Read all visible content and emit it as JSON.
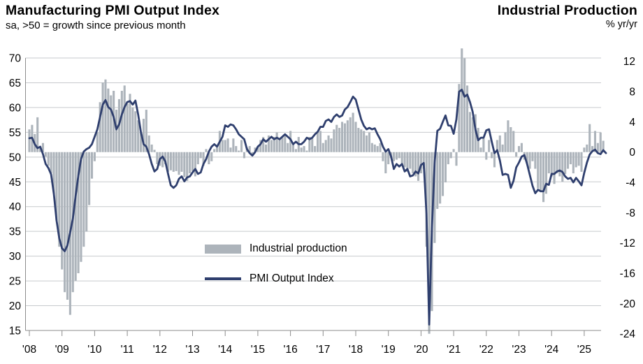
{
  "header": {
    "left_title": "Manufacturing PMI Output Index",
    "left_subtitle": "sa, >50 = growth since previous month",
    "right_title": "Industrial Production",
    "right_subtitle": "% yr/yr"
  },
  "legend": {
    "bars_label": "Industrial production",
    "line_label": "PMI Output Index"
  },
  "colors": {
    "bar": "#adb4bb",
    "line": "#2f3f6e",
    "grid": "#c7cacd",
    "axis": "#8c8c8c",
    "text": "#000000"
  },
  "chart_data": {
    "type": "bar+line",
    "frequency": "monthly",
    "start_year": 2008,
    "start_month": 1,
    "end_label": "2025-09",
    "grid": true,
    "legend_position": "overlay-center-left",
    "x_tick_labels": [
      "'08",
      "'09",
      "'10",
      "'11",
      "'12",
      "'13",
      "'14",
      "'15",
      "'16",
      "'17",
      "'18",
      "'19",
      "'20",
      "'21",
      "'22",
      "'23",
      "'24",
      "'25"
    ],
    "left_axis": {
      "min": 15,
      "max": 70,
      "tick_step": 5,
      "ticks": [
        70,
        65,
        60,
        55,
        50,
        45,
        40,
        35,
        30,
        25,
        20,
        15
      ],
      "series": "PMI Output Index"
    },
    "right_axis": {
      "min": -24,
      "max": 12,
      "tick_step": 4,
      "ticks": [
        12,
        8,
        4,
        0,
        -4,
        -8,
        -12,
        -16,
        -20,
        -24
      ],
      "unit": "% yr/yr",
      "zero_at_left_value": 51,
      "series": "Industrial production"
    },
    "series": [
      {
        "name": "Industrial production",
        "type": "bar",
        "axis": "right",
        "values": [
          3.0,
          3.6,
          2.4,
          4.6,
          0.8,
          1.2,
          -0.6,
          -1.8,
          -2.8,
          -5.5,
          -9.0,
          -12.5,
          -15.5,
          -18.5,
          -19.5,
          -21.5,
          -18.5,
          -17.0,
          -16.0,
          -14.5,
          -12.5,
          -10.5,
          -7.0,
          -3.5,
          -1.2,
          2.6,
          6.6,
          9.2,
          9.6,
          8.4,
          7.5,
          8.1,
          5.6,
          7.0,
          8.1,
          8.8,
          6.4,
          7.7,
          5.9,
          5.4,
          4.2,
          2.6,
          4.4,
          5.6,
          2.2,
          1.0,
          0.3,
          -1.6,
          -1.8,
          -2.0,
          -1.6,
          -2.6,
          -2.4,
          -2.6,
          -2.5,
          -3.0,
          -2.6,
          -3.3,
          -3.8,
          -2.8,
          -2.5,
          -3.2,
          -1.6,
          -0.8,
          -1.8,
          0.4,
          -1.6,
          -1.2,
          0.4,
          0.6,
          2.8,
          1.6,
          1.6,
          1.8,
          0.6,
          1.8,
          0.8,
          0.2,
          1.6,
          -0.8,
          0.6,
          0.8,
          -0.4,
          0.6,
          0.8,
          1.6,
          2.0,
          1.0,
          2.2,
          1.6,
          2.0,
          2.6,
          1.8,
          2.0,
          2.2,
          1.2,
          2.8,
          1.0,
          0.4,
          2.0,
          0.6,
          0.8,
          0.2,
          2.0,
          1.8,
          0.8,
          2.6,
          2.8,
          1.2,
          1.6,
          2.2,
          1.8,
          3.0,
          3.6,
          3.2,
          4.0,
          3.8,
          4.2,
          4.6,
          5.2,
          4.0,
          3.2,
          3.0,
          2.8,
          2.2,
          2.6,
          1.2,
          1.0,
          0.8,
          1.2,
          -1.2,
          -2.8,
          -1.6,
          -0.8,
          -1.2,
          -1.0,
          -0.8,
          -1.8,
          -2.0,
          -2.6,
          -2.2,
          -2.8,
          -3.2,
          -3.8,
          -2.8,
          -2.2,
          -12.5,
          -24.0,
          -21.0,
          -12.0,
          -7.5,
          -6.8,
          -5.8,
          -4.0,
          -1.6,
          -0.8,
          0.4,
          -1.8,
          9.0,
          13.7,
          12.4,
          8.8,
          5.3,
          4.6,
          5.0,
          3.2,
          0.6,
          1.8,
          -1.0,
          1.6,
          -0.8,
          -2.0,
          1.6,
          2.2,
          1.0,
          2.6,
          4.2,
          3.3,
          2.8,
          -0.6,
          0.8,
          1.2,
          -1.0,
          -1.6,
          -2.2,
          -1.2,
          -2.2,
          -4.8,
          -5.2,
          -6.6,
          -5.5,
          -2.8,
          -3.2,
          -4.2,
          -2.8,
          -3.2,
          -3.9,
          -2.9,
          -2.2,
          -1.6,
          -2.8,
          -2.0,
          -1.8,
          -2.6,
          0.6,
          1.0,
          3.7,
          0.8,
          2.8,
          1.2,
          2.6,
          1.5,
          null
        ]
      },
      {
        "name": "PMI Output Index",
        "type": "line",
        "axis": "left",
        "values": [
          53.8,
          53.9,
          52.6,
          51.8,
          52.1,
          50.6,
          48.6,
          47.8,
          46.5,
          42.6,
          37.2,
          33.6,
          31.6,
          31.0,
          32.2,
          34.8,
          37.6,
          42.1,
          46.2,
          49.6,
          51.1,
          51.6,
          51.9,
          52.6,
          54.1,
          55.6,
          58.1,
          60.6,
          61.5,
          60.1,
          59.6,
          58.1,
          55.6,
          56.6,
          58.6,
          60.1,
          61.1,
          61.3,
          60.6,
          61.4,
          58.6,
          55.1,
          52.6,
          52.1,
          50.6,
          48.6,
          47.1,
          47.6,
          49.6,
          50.1,
          49.1,
          46.6,
          44.3,
          43.8,
          44.3,
          45.6,
          46.1,
          45.1,
          45.9,
          46.1,
          46.9,
          47.6,
          46.6,
          46.9,
          48.6,
          49.6,
          51.1,
          52.1,
          52.6,
          52.1,
          53.1,
          54.1,
          56.4,
          56.1,
          56.6,
          56.4,
          55.6,
          54.6,
          54.1,
          53.6,
          51.6,
          50.8,
          50.3,
          51.0,
          52.1,
          52.6,
          53.6,
          53.1,
          53.6,
          54.1,
          53.6,
          53.9,
          53.6,
          54.1,
          54.6,
          54.1,
          53.6,
          52.6,
          53.1,
          52.6,
          52.6,
          53.1,
          53.9,
          53.6,
          53.9,
          54.6,
          55.1,
          56.1,
          56.1,
          57.3,
          57.6,
          57.1,
          58.1,
          58.6,
          58.1,
          58.4,
          59.6,
          60.1,
          61.1,
          62.2,
          61.6,
          59.6,
          57.6,
          56.3,
          55.6,
          55.9,
          55.6,
          55.8,
          54.6,
          53.6,
          52.1,
          51.1,
          51.6,
          50.1,
          47.6,
          48.6,
          48.1,
          48.6,
          47.1,
          47.6,
          46.1,
          46.3,
          47.1,
          46.7,
          48.4,
          48.8,
          38.6,
          16.2,
          35.6,
          48.9,
          55.3,
          55.7,
          57.1,
          58.4,
          56.4,
          56.3,
          54.7,
          57.6,
          63.2,
          63.6,
          62.2,
          62.6,
          61.1,
          59.1,
          55.6,
          53.4,
          53.9,
          53.9,
          55.4,
          55.6,
          53.1,
          50.8,
          51.4,
          49.3,
          46.4,
          46.6,
          46.4,
          43.8,
          45.2,
          47.9,
          48.9,
          50.1,
          50.4,
          48.6,
          46.4,
          44.2,
          42.7,
          43.4,
          43.1,
          43.1,
          44.6,
          44.4,
          46.6,
          46.6,
          47.1,
          47.3,
          47.0,
          46.1,
          45.6,
          45.8,
          44.9,
          45.8,
          45.1,
          44.3,
          46.8,
          48.9,
          50.5,
          51.2,
          51.5,
          50.8,
          50.6,
          51.4,
          50.8
        ]
      }
    ]
  }
}
